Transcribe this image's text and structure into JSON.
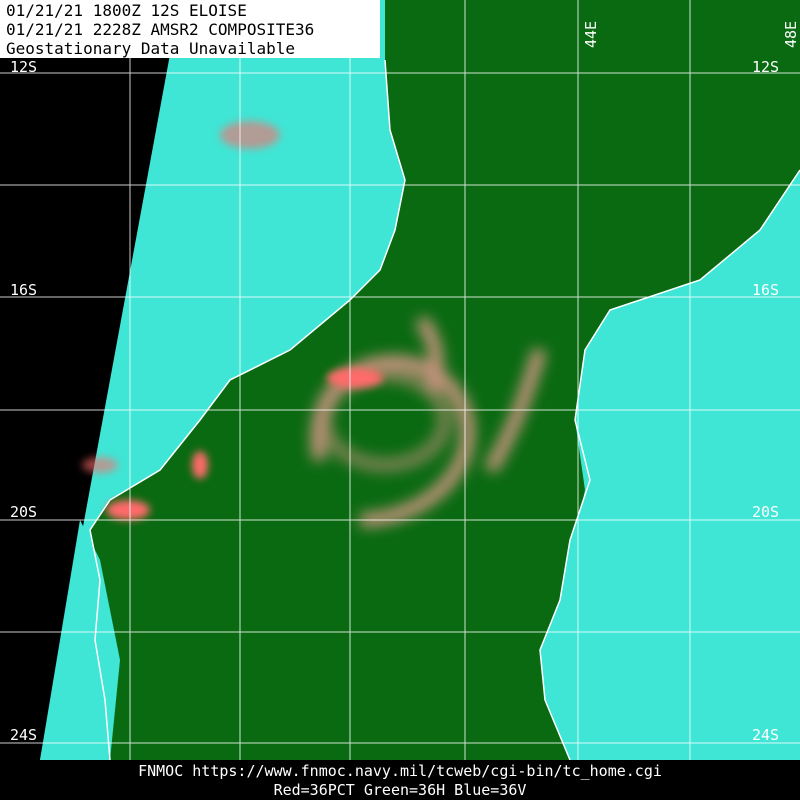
{
  "header": {
    "lines": [
      "01/21/21 1800Z  12S ELOISE",
      "01/21/21 2228Z  AMSR2 COMPOSITE36",
      "Geostationary Data Unavailable"
    ]
  },
  "lat_labels": [
    "12S",
    "16S",
    "20S",
    "24S"
  ],
  "lon_labels": [
    "44E",
    "48E"
  ],
  "footer": {
    "source": "FNMOC https://www.fnmoc.navy.mil/tcweb/cgi-bin/tc_home.cgi",
    "channels": "Red=36PCT   Green=36H   Blue=36V"
  }
}
